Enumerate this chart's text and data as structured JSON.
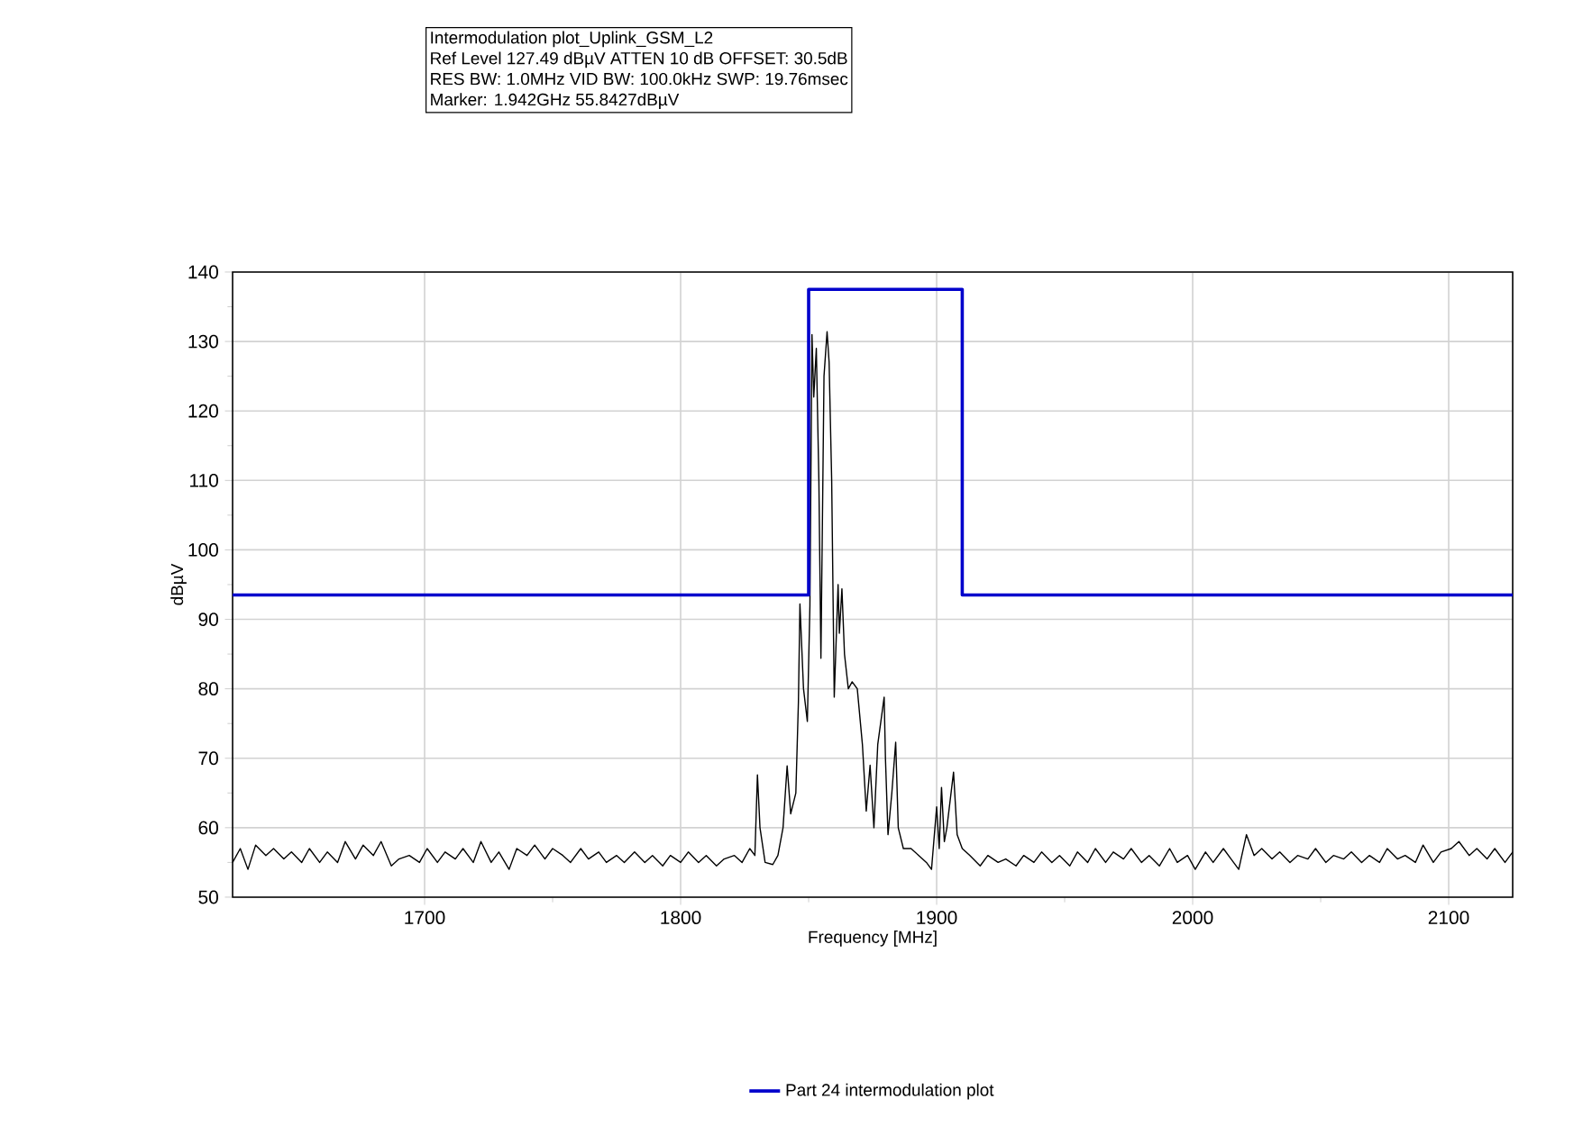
{
  "chart_data": {
    "type": "line",
    "xlabel": "Frequency [MHz]",
    "ylabel": "dBµV",
    "annotations": [
      "Intermodulation plot_Uplink_GSM_L2",
      "Ref Level 127.49 dBµV    ATTEN 10 dB    OFFSET: 30.5dB",
      "RES BW: 1.0MHz  VID BW: 100.0kHz  SWP: 19.76msec",
      "Marker: 1.942GHz  55.8427dBµV"
    ],
    "xlim": [
      1625,
      2125
    ],
    "ylim": [
      50,
      140
    ],
    "xticks": [
      1700,
      1800,
      1900,
      2000,
      2100
    ],
    "yticks": [
      50,
      60,
      70,
      80,
      90,
      100,
      110,
      120,
      130,
      140
    ],
    "grid": true,
    "legend": "bottom",
    "marker": "none",
    "line_style": "solid",
    "series": [
      {
        "color": "#000000",
        "x": [
          1625,
          1628,
          1631,
          1634,
          1638,
          1641,
          1645,
          1648,
          1652,
          1655,
          1659,
          1662,
          1666,
          1669,
          1673,
          1676,
          1680,
          1683,
          1687,
          1690,
          1694,
          1698,
          1701,
          1705,
          1708,
          1712,
          1715,
          1719,
          1722,
          1726,
          1729,
          1733,
          1736,
          1740,
          1743,
          1747,
          1750,
          1754,
          1757,
          1761,
          1764,
          1768,
          1771,
          1775,
          1778,
          1782,
          1786,
          1789,
          1793,
          1796,
          1800,
          1803,
          1807,
          1810,
          1814,
          1817,
          1821,
          1824,
          1827,
          1829,
          1830,
          1831,
          1833,
          1836,
          1838,
          1840,
          1841.6,
          1843,
          1845,
          1846,
          1846.6,
          1848,
          1849.5,
          1850.5,
          1851.3,
          1852,
          1853,
          1854,
          1854.8,
          1856,
          1857.2,
          1858,
          1859,
          1860,
          1861.5,
          1862,
          1863,
          1864,
          1865.5,
          1867,
          1869,
          1871,
          1872.5,
          1874,
          1875.5,
          1877,
          1879.5,
          1880,
          1881,
          1882.5,
          1884,
          1885,
          1887,
          1890,
          1893,
          1896,
          1898,
          1900,
          1901,
          1901.9,
          1903,
          1904,
          1906.6,
          1908,
          1910,
          1913,
          1917,
          1920,
          1924,
          1927,
          1931,
          1934,
          1938,
          1941,
          1945,
          1948,
          1952,
          1955,
          1959,
          1962,
          1966,
          1969,
          1973,
          1976,
          1980,
          1983,
          1987,
          1991,
          1994,
          1998,
          2001,
          2005,
          2008,
          2012,
          2015,
          2018,
          2021,
          2024,
          2027,
          2031,
          2034,
          2038,
          2041,
          2045,
          2048,
          2052,
          2055,
          2059,
          2062,
          2066,
          2069,
          2073,
          2076,
          2080,
          2083,
          2087,
          2090,
          2094,
          2097,
          2101,
          2104,
          2108,
          2111,
          2115,
          2118,
          2122,
          2125
        ],
        "values": [
          55,
          57,
          54,
          57.5,
          56,
          57,
          55.5,
          56.5,
          55,
          57,
          55,
          56.5,
          55,
          58,
          55.5,
          57.5,
          56,
          58,
          54.5,
          55.5,
          56,
          55,
          57,
          55,
          56.5,
          55.5,
          57,
          55,
          58,
          55,
          56.5,
          54,
          57,
          56,
          57.5,
          55.5,
          57,
          56,
          55,
          57,
          55.5,
          56.5,
          55,
          56,
          55,
          56.5,
          55,
          56,
          54.5,
          56,
          55,
          56.5,
          55,
          56,
          54.5,
          55.5,
          56,
          55,
          57,
          56,
          67.6,
          60,
          55,
          54.7,
          56,
          60,
          68.9,
          62,
          65,
          78,
          92.2,
          80,
          75.3,
          92,
          131,
          122,
          129,
          110,
          84.4,
          125,
          131.4,
          127,
          110,
          78.8,
          95,
          88,
          94.4,
          85,
          80,
          81,
          80,
          72,
          62.4,
          69,
          60,
          72,
          78.8,
          70,
          59,
          65,
          72.3,
          60,
          57,
          57,
          56,
          55,
          54,
          63,
          57,
          65.8,
          58,
          60,
          68,
          59,
          57,
          56,
          54.5,
          56,
          55,
          55.5,
          54.5,
          56,
          55,
          56.5,
          55,
          56,
          54.5,
          56.5,
          55,
          57,
          55,
          56.5,
          55.5,
          57,
          55,
          56,
          54.5,
          57,
          55,
          56,
          54,
          56.5,
          55,
          57,
          55.5,
          54,
          59,
          56,
          57,
          55.5,
          56.5,
          55,
          56,
          55.5,
          57,
          55,
          56,
          55.5,
          56.5,
          55,
          56,
          55,
          57,
          55.5,
          56,
          55,
          57.5,
          55,
          56.5,
          57,
          58,
          56,
          57,
          55.5,
          57,
          55,
          56.5
        ]
      },
      {
        "name": "Part 24 intermodulation plot",
        "color": "#0000cc",
        "x": [
          1625,
          1850,
          1850,
          1910,
          1910,
          2125
        ],
        "values": [
          93.5,
          93.5,
          137.5,
          137.5,
          93.5,
          93.5
        ]
      }
    ]
  }
}
